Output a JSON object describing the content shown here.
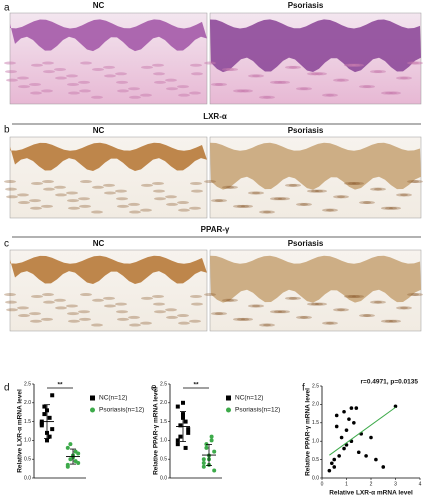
{
  "panels": [
    {
      "label": "a",
      "titles": [
        "NC",
        "Psoriasis"
      ],
      "stain": "he"
    },
    {
      "label": "b",
      "title": "LXR-α",
      "titles": [
        "NC",
        "Psoriasis"
      ],
      "stain": "ihc"
    },
    {
      "label": "c",
      "title": "PPAR-γ",
      "titles": [
        "NC",
        "Psoriasis"
      ],
      "stain": "ihc"
    }
  ],
  "chart_data": [
    {
      "type": "strip",
      "label": "d",
      "ylabel": "Relative LXR-α mRNA level",
      "significance": "**",
      "ylim": [
        0,
        2.5
      ],
      "yticks": [
        {
          "value": 0,
          "label": "0.0"
        },
        {
          "value": 0.5,
          "label": "0.5"
        },
        {
          "value": 1,
          "label": "1.0"
        },
        {
          "value": 1.5,
          "label": "1.5"
        },
        {
          "value": 2,
          "label": "2.0"
        },
        {
          "value": 2.5,
          "label": "2.5"
        }
      ],
      "series": [
        {
          "name": "NC(n=12)",
          "color": "#000000",
          "marker": "square",
          "values": [
            1.5,
            1.2,
            2.2,
            1.9,
            1.6,
            1.4,
            1.0,
            1.3,
            1.7,
            1.1,
            1.45,
            1.8
          ],
          "mean": 1.5,
          "sd": 0.45
        },
        {
          "name": "Psoriasis(n=12)",
          "color": "#3daa4a",
          "marker": "circle",
          "values": [
            0.8,
            0.6,
            0.4,
            0.5,
            0.7,
            0.3,
            0.55,
            0.65,
            0.9,
            0.45,
            0.35,
            0.6
          ],
          "mean": 0.57,
          "sd": 0.2
        }
      ]
    },
    {
      "type": "strip",
      "label": "e",
      "ylabel": "Relative PPAR-γ mRNA level",
      "significance": "**",
      "ylim": [
        0,
        2.5
      ],
      "yticks": [
        {
          "value": 0,
          "label": "0.0"
        },
        {
          "value": 0.5,
          "label": "0.5"
        },
        {
          "value": 1,
          "label": "1.0"
        },
        {
          "value": 1.5,
          "label": "1.5"
        },
        {
          "value": 2,
          "label": "2.0"
        },
        {
          "value": 2.5,
          "label": "2.5"
        }
      ],
      "series": [
        {
          "name": "NC(n=12)",
          "color": "#000000",
          "marker": "square",
          "values": [
            1.9,
            1.6,
            1.3,
            1.1,
            1.5,
            0.9,
            1.7,
            1.2,
            1.4,
            0.8,
            1.0,
            2.0
          ],
          "mean": 1.37,
          "sd": 0.4
        },
        {
          "name": "Psoriasis(n=12)",
          "color": "#3daa4a",
          "marker": "circle",
          "values": [
            0.3,
            0.5,
            0.7,
            0.9,
            1.0,
            0.4,
            0.6,
            0.2,
            0.8,
            1.1,
            0.5,
            0.35
          ],
          "mean": 0.61,
          "sd": 0.28
        }
      ]
    },
    {
      "type": "scatter",
      "label": "f",
      "xlabel": "Relative LXR-α mRNA level",
      "ylabel": "Relative PPAR-γ mRNA level",
      "annotation": "r=0.4971, p=0.0135",
      "xlim": [
        0,
        4
      ],
      "xticks": [
        0,
        1,
        2,
        3,
        4
      ],
      "ylim": [
        0,
        2.5
      ],
      "yticks": [
        {
          "value": 0,
          "label": "0.0"
        },
        {
          "value": 0.5,
          "label": "0.5"
        },
        {
          "value": 1,
          "label": "1.0"
        },
        {
          "value": 1.5,
          "label": "1.5"
        },
        {
          "value": 2,
          "label": "2.0"
        },
        {
          "value": 2.5,
          "label": "2.5"
        }
      ],
      "color": "#000000",
      "fit_color": "#3daa4a",
      "x": [
        0.3,
        0.4,
        0.5,
        0.5,
        0.6,
        0.7,
        0.8,
        0.9,
        1.0,
        1.0,
        1.1,
        1.2,
        1.2,
        1.3,
        1.5,
        1.6,
        1.8,
        2.0,
        2.2,
        2.5,
        3.0,
        0.6,
        0.9,
        1.4
      ],
      "y": [
        0.2,
        0.4,
        0.3,
        0.5,
        1.4,
        0.6,
        1.1,
        0.8,
        1.3,
        0.9,
        1.6,
        1.0,
        1.9,
        1.5,
        0.7,
        1.2,
        0.6,
        1.1,
        0.5,
        0.3,
        1.95,
        1.7,
        1.8,
        1.9
      ],
      "fit": {
        "x": [
          0.3,
          3.0
        ],
        "y": [
          0.62,
          1.92
        ]
      }
    }
  ]
}
